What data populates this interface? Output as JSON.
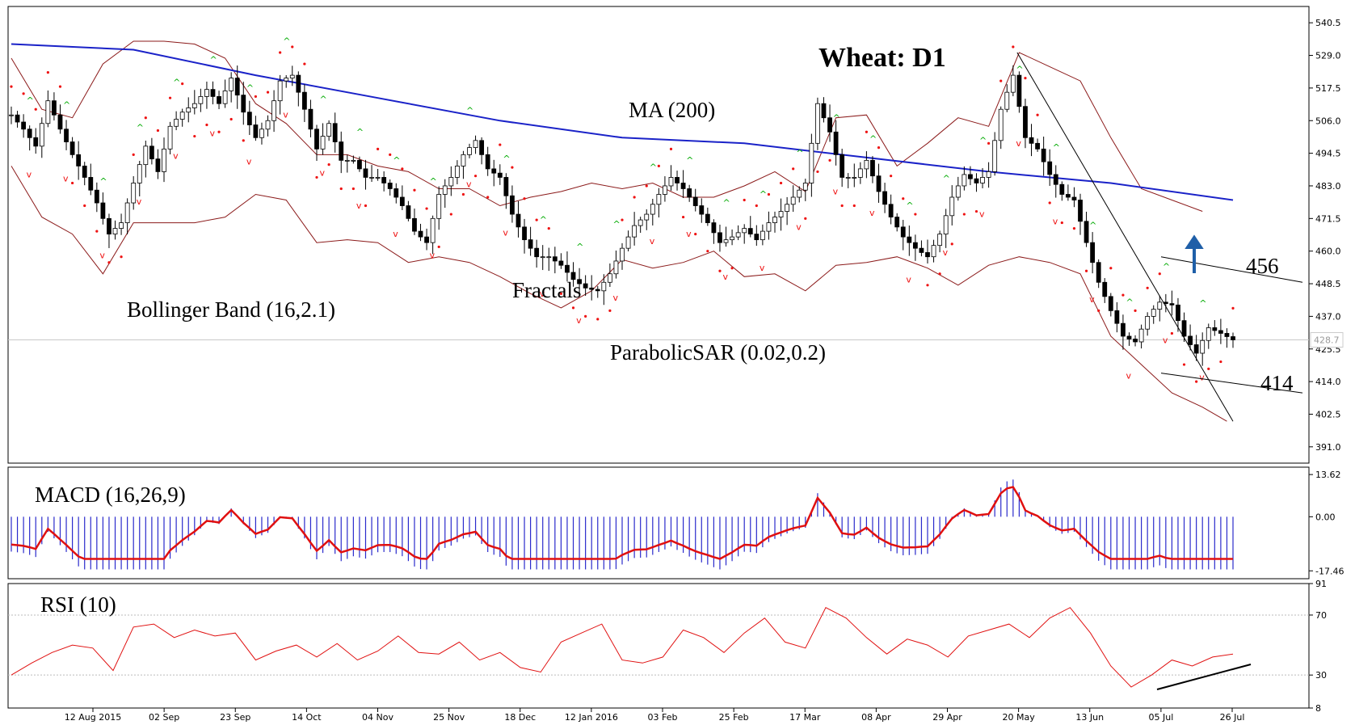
{
  "chart_data": {
    "type": "candlestick",
    "title": "Wheat: D1",
    "x_ticks": [
      "12 Aug 2015",
      "02 Sep",
      "23 Sep",
      "14 Oct",
      "04 Nov",
      "25 Nov",
      "18 Dec",
      "12 Jan 2016",
      "03 Feb",
      "25 Feb",
      "17 Mar",
      "08 Apr",
      "29 Apr",
      "20 May",
      "13 Jun",
      "05 Jul",
      "26 Jul"
    ],
    "price_panel": {
      "ylim": [
        385.25,
        546.25
      ],
      "y_ticks": [
        391.0,
        402.5,
        414.0,
        425.5,
        437.0,
        448.5,
        460.0,
        471.5,
        483.0,
        494.5,
        506.0,
        517.5,
        529.0,
        540.5
      ],
      "y_tick_labels": [
        "391.0",
        "402.5",
        "414.0",
        "425.5",
        "437.0",
        "448.5",
        "460.0",
        "471.5",
        "483.0",
        "494.5",
        "506.0",
        "517.5",
        "529.0",
        "540.5"
      ],
      "last_price": 428.7,
      "last_price_label": "428.7",
      "close_path": [
        [
          0,
          508
        ],
        [
          6,
          503
        ],
        [
          12,
          497
        ],
        [
          18,
          513
        ],
        [
          24,
          503
        ],
        [
          30,
          494
        ],
        [
          36,
          486
        ],
        [
          42,
          477
        ],
        [
          48,
          466
        ],
        [
          54,
          470
        ],
        [
          60,
          484
        ],
        [
          66,
          497
        ],
        [
          72,
          488
        ],
        [
          78,
          504
        ],
        [
          84,
          509
        ],
        [
          90,
          512
        ],
        [
          96,
          517
        ],
        [
          102,
          512
        ],
        [
          108,
          521
        ],
        [
          114,
          509
        ],
        [
          120,
          500
        ],
        [
          126,
          506
        ],
        [
          132,
          520
        ],
        [
          138,
          522
        ],
        [
          144,
          510
        ],
        [
          150,
          496
        ],
        [
          156,
          505
        ],
        [
          162,
          492
        ],
        [
          168,
          492
        ],
        [
          174,
          486
        ],
        [
          180,
          486
        ],
        [
          186,
          482
        ],
        [
          192,
          476
        ],
        [
          198,
          467
        ],
        [
          204,
          463
        ],
        [
          210,
          480
        ],
        [
          216,
          486
        ],
        [
          222,
          494
        ],
        [
          228,
          499
        ],
        [
          234,
          489
        ],
        [
          240,
          486
        ],
        [
          246,
          473
        ],
        [
          252,
          464
        ],
        [
          258,
          458
        ],
        [
          264,
          458
        ],
        [
          270,
          455
        ],
        [
          276,
          450
        ],
        [
          282,
          447
        ],
        [
          288,
          446
        ],
        [
          294,
          452
        ],
        [
          300,
          461
        ],
        [
          306,
          469
        ],
        [
          312,
          473
        ],
        [
          318,
          480
        ],
        [
          324,
          486
        ],
        [
          330,
          482
        ],
        [
          336,
          476
        ],
        [
          342,
          470
        ],
        [
          348,
          463
        ],
        [
          354,
          465
        ],
        [
          360,
          468
        ],
        [
          366,
          464
        ],
        [
          372,
          470
        ],
        [
          378,
          474
        ],
        [
          384,
          479
        ],
        [
          390,
          484
        ],
        [
          396,
          512
        ],
        [
          402,
          502
        ],
        [
          408,
          486
        ],
        [
          414,
          486
        ],
        [
          420,
          492
        ],
        [
          426,
          481
        ],
        [
          432,
          472
        ],
        [
          438,
          465
        ],
        [
          444,
          461
        ],
        [
          450,
          458
        ],
        [
          456,
          466
        ],
        [
          462,
          479
        ],
        [
          468,
          487
        ],
        [
          474,
          484
        ],
        [
          480,
          488
        ],
        [
          486,
          510
        ],
        [
          492,
          522
        ],
        [
          498,
          500
        ],
        [
          504,
          496
        ],
        [
          510,
          487
        ],
        [
          516,
          480
        ],
        [
          522,
          478
        ],
        [
          528,
          463
        ],
        [
          534,
          449
        ],
        [
          540,
          439
        ],
        [
          546,
          430
        ],
        [
          552,
          428
        ],
        [
          558,
          437
        ],
        [
          564,
          442
        ],
        [
          570,
          441
        ],
        [
          576,
          430
        ],
        [
          582,
          424
        ],
        [
          588,
          433
        ],
        [
          594,
          431
        ],
        [
          600,
          428.7
        ]
      ],
      "ma200_path": [
        [
          0,
          533
        ],
        [
          60,
          531
        ],
        [
          120,
          522
        ],
        [
          180,
          514
        ],
        [
          240,
          506
        ],
        [
          300,
          500
        ],
        [
          360,
          498
        ],
        [
          420,
          493
        ],
        [
          480,
          488
        ],
        [
          540,
          484
        ],
        [
          600,
          478
        ]
      ],
      "bollinger_upper": [
        [
          0,
          528
        ],
        [
          15,
          510
        ],
        [
          30,
          507
        ],
        [
          45,
          526
        ],
        [
          60,
          534
        ],
        [
          75,
          534
        ],
        [
          90,
          533
        ],
        [
          105,
          528
        ],
        [
          120,
          512
        ],
        [
          135,
          505
        ],
        [
          150,
          494
        ],
        [
          165,
          494
        ],
        [
          180,
          490
        ],
        [
          195,
          488
        ],
        [
          210,
          482
        ],
        [
          225,
          482
        ],
        [
          240,
          476
        ],
        [
          255,
          479
        ],
        [
          270,
          481
        ],
        [
          285,
          484
        ],
        [
          300,
          482
        ],
        [
          315,
          484
        ],
        [
          330,
          479
        ],
        [
          345,
          479
        ],
        [
          360,
          483
        ],
        [
          375,
          488
        ],
        [
          390,
          481
        ],
        [
          405,
          507
        ],
        [
          420,
          508
        ],
        [
          435,
          490
        ],
        [
          450,
          498
        ],
        [
          465,
          507
        ],
        [
          480,
          504
        ],
        [
          495,
          530
        ],
        [
          510,
          525
        ],
        [
          525,
          520
        ],
        [
          540,
          500
        ],
        [
          555,
          482
        ],
        [
          570,
          478
        ],
        [
          585,
          474
        ]
      ],
      "bollinger_lower": [
        [
          0,
          490
        ],
        [
          15,
          472
        ],
        [
          30,
          466
        ],
        [
          45,
          452
        ],
        [
          60,
          470
        ],
        [
          75,
          470
        ],
        [
          90,
          470
        ],
        [
          105,
          472
        ],
        [
          120,
          480
        ],
        [
          135,
          478
        ],
        [
          150,
          463
        ],
        [
          165,
          464
        ],
        [
          180,
          463
        ],
        [
          195,
          456
        ],
        [
          210,
          458
        ],
        [
          225,
          456
        ],
        [
          240,
          451
        ],
        [
          255,
          445
        ],
        [
          270,
          440
        ],
        [
          285,
          446
        ],
        [
          300,
          457
        ],
        [
          315,
          454
        ],
        [
          330,
          456
        ],
        [
          345,
          460
        ],
        [
          360,
          451
        ],
        [
          375,
          452
        ],
        [
          390,
          446
        ],
        [
          405,
          455
        ],
        [
          420,
          456
        ],
        [
          435,
          458
        ],
        [
          450,
          454
        ],
        [
          465,
          448
        ],
        [
          480,
          455
        ],
        [
          495,
          458
        ],
        [
          510,
          456
        ],
        [
          525,
          452
        ],
        [
          540,
          430
        ],
        [
          555,
          420
        ],
        [
          570,
          410
        ],
        [
          585,
          405
        ],
        [
          597,
          400
        ]
      ],
      "annotations": [
        "MA (200)",
        "Bollinger Band (16,2.1)",
        "Fractals",
        "ParabolicSAR (0.02,0.2)"
      ],
      "levels": [
        {
          "label": "456",
          "value": 456
        },
        {
          "label": "414",
          "value": 414
        }
      ]
    },
    "macd_panel": {
      "label": "MACD (16,26,9)",
      "ylim": [
        -20,
        16
      ],
      "y_ticks": [
        13.62,
        0.0,
        -17.46
      ],
      "y_tick_labels": [
        "13.62",
        "0.00",
        "-17.46"
      ]
    },
    "rsi_panel": {
      "label": "RSI (10)",
      "ylim": [
        8,
        91
      ],
      "y_ticks": [
        91,
        70,
        30,
        8
      ],
      "y_tick_labels": [
        "91",
        "70",
        "30",
        "8"
      ],
      "path": [
        [
          0,
          30
        ],
        [
          10,
          38
        ],
        [
          20,
          45
        ],
        [
          30,
          50
        ],
        [
          40,
          48
        ],
        [
          50,
          33
        ],
        [
          60,
          62
        ],
        [
          70,
          64
        ],
        [
          80,
          55
        ],
        [
          90,
          60
        ],
        [
          100,
          56
        ],
        [
          110,
          58
        ],
        [
          120,
          40
        ],
        [
          130,
          46
        ],
        [
          140,
          50
        ],
        [
          150,
          42
        ],
        [
          160,
          51
        ],
        [
          170,
          40
        ],
        [
          180,
          46
        ],
        [
          190,
          56
        ],
        [
          200,
          45
        ],
        [
          210,
          44
        ],
        [
          220,
          52
        ],
        [
          230,
          40
        ],
        [
          240,
          45
        ],
        [
          250,
          35
        ],
        [
          260,
          32
        ],
        [
          270,
          52
        ],
        [
          280,
          58
        ],
        [
          290,
          64
        ],
        [
          300,
          40
        ],
        [
          310,
          38
        ],
        [
          320,
          42
        ],
        [
          330,
          60
        ],
        [
          340,
          55
        ],
        [
          350,
          45
        ],
        [
          360,
          58
        ],
        [
          370,
          68
        ],
        [
          380,
          52
        ],
        [
          390,
          48
        ],
        [
          400,
          75
        ],
        [
          410,
          68
        ],
        [
          420,
          55
        ],
        [
          430,
          44
        ],
        [
          440,
          54
        ],
        [
          450,
          50
        ],
        [
          460,
          42
        ],
        [
          470,
          56
        ],
        [
          480,
          60
        ],
        [
          490,
          64
        ],
        [
          500,
          55
        ],
        [
          510,
          68
        ],
        [
          520,
          75
        ],
        [
          530,
          58
        ],
        [
          540,
          36
        ],
        [
          550,
          22
        ],
        [
          560,
          30
        ],
        [
          570,
          40
        ],
        [
          580,
          36
        ],
        [
          590,
          42
        ],
        [
          600,
          44
        ]
      ]
    }
  }
}
